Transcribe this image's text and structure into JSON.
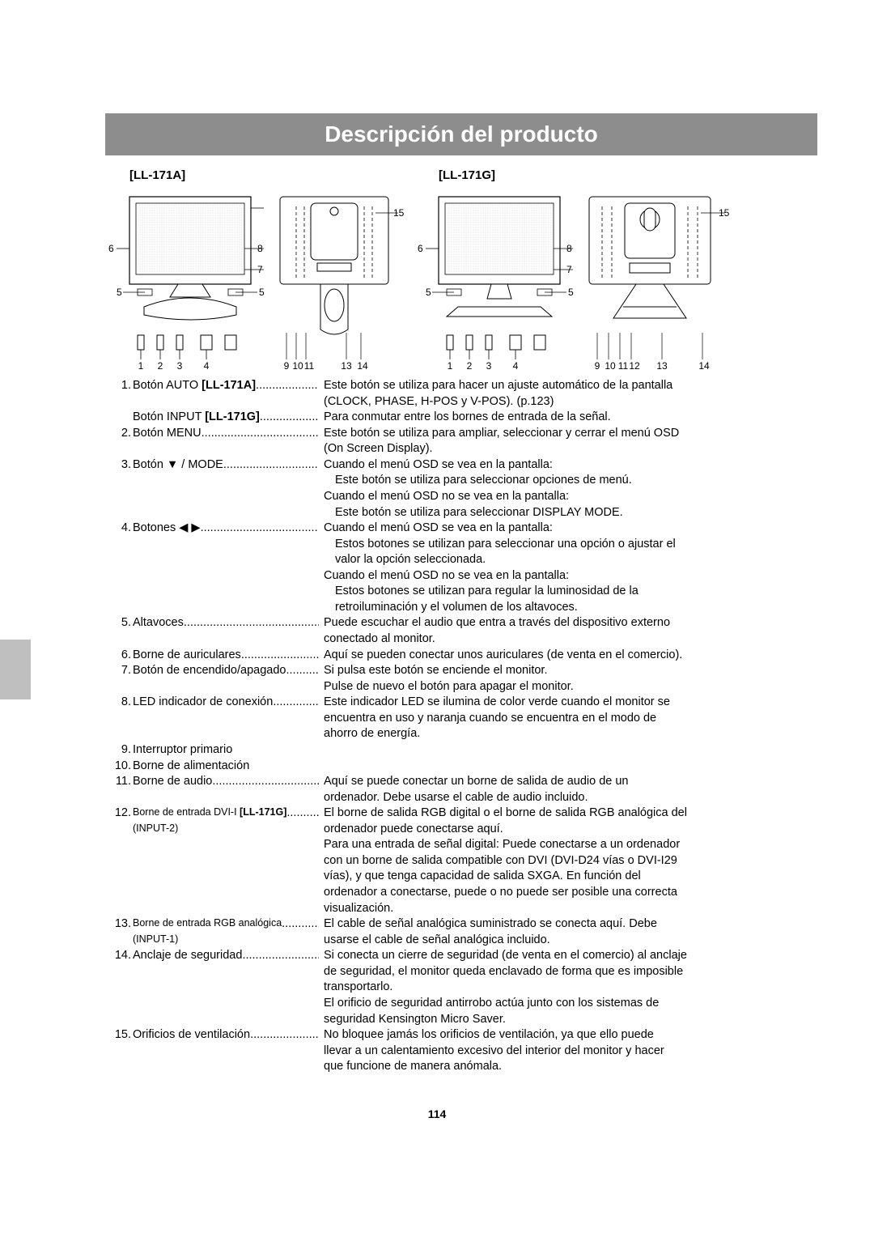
{
  "title": "Descripción del producto",
  "page_number": "114",
  "models": {
    "a": "[LL-171A]",
    "g": "[LL-171G]"
  },
  "diagram": {
    "front_a_labels": {
      "15": "15",
      "8": "8",
      "7": "7",
      "6": "6",
      "5l": "5",
      "5r": "5",
      "b1": "1",
      "b2": "2",
      "b3": "3",
      "b4": "4"
    },
    "back_a_labels": {
      "b9": "9",
      "b10": "10",
      "b11": "11",
      "b13": "13",
      "b14": "14"
    },
    "front_g_labels": {
      "15": "15",
      "8": "8",
      "7": "7",
      "6": "6",
      "5l": "5",
      "5r": "5",
      "b1": "1",
      "b2": "2",
      "b3": "3",
      "b4": "4"
    },
    "back_g_labels": {
      "b9": "9",
      "b10": "10",
      "b11": "11",
      "b12": "12",
      "b13": "13",
      "b14": "14"
    }
  },
  "entries": [
    {
      "num": "1.",
      "label": "Botón AUTO [LL-171A]",
      "desc_lines": [
        "Este botón se utiliza para hacer un ajuste automático de la pantalla",
        "(CLOCK, PHASE, H-POS y V-POS). (p.123)"
      ],
      "extra_label": "Botón INPUT [LL-171G]",
      "extra_desc": "Para conmutar entre los bornes de entrada de la señal."
    },
    {
      "num": "2.",
      "label": "Botón MENU",
      "desc_lines": [
        "Este botón se utiliza para ampliar, seleccionar y cerrar el menú OSD",
        "(On Screen Display)."
      ]
    },
    {
      "num": "3.",
      "label": "Botón ▼ / MODE",
      "desc_lines": [
        "Cuando el menú OSD se vea en la pantalla:",
        "  Este botón se utiliza para seleccionar opciones de menú.",
        "Cuando el menú OSD no se vea en la pantalla:",
        "  Este botón se utiliza para seleccionar DISPLAY MODE."
      ]
    },
    {
      "num": "4.",
      "label": "Botones ◀ ▶",
      "desc_lines": [
        "Cuando el menú OSD se vea en la pantalla:",
        "  Estos botones se utilizan para seleccionar una opción o ajustar el",
        "  valor la opción seleccionada.",
        "Cuando el menú OSD no se vea en la pantalla:",
        "  Estos botones se utilizan para regular la luminosidad de la",
        "  retroiluminación y el volumen de los altavoces."
      ]
    },
    {
      "num": "5.",
      "label": "Altavoces",
      "desc_lines": [
        "Puede escuchar el audio que entra a través del dispositivo externo",
        "conectado al monitor."
      ]
    },
    {
      "num": "6.",
      "label": "Borne de auriculares",
      "desc_lines": [
        "Aquí se pueden conectar unos auriculares (de venta en el comercio)."
      ]
    },
    {
      "num": "7.",
      "label": "Botón de encendido/apagado",
      "desc_lines": [
        "Si pulsa este botón se enciende el monitor.",
        "Pulse de nuevo el botón para apagar el monitor."
      ]
    },
    {
      "num": "8.",
      "label": "LED indicador de conexión",
      "desc_lines": [
        "Este indicador LED se ilumina de color verde cuando el monitor se",
        "encuentra en uso y naranja cuando se encuentra en el modo de",
        "ahorro de energía."
      ]
    },
    {
      "num": "9.",
      "label": "Interruptor primario",
      "no_desc": true
    },
    {
      "num": "10.",
      "label": "Borne de alimentación",
      "no_desc": true
    },
    {
      "num": "11.",
      "label": "Borne de audio",
      "desc_lines": [
        "Aquí se puede conectar un borne de salida de audio de un",
        "ordenador. Debe usarse el cable de audio incluido."
      ]
    },
    {
      "num": "12.",
      "label": "Borne de entrada DVI-I [LL-171G]",
      "sublabel": "(INPUT-2)",
      "small": true,
      "desc_lines": [
        "El borne de salida RGB digital o el borne de salida RGB analógica del",
        "ordenador puede conectarse aquí.",
        "Para una entrada de señal digital: Puede conectarse a un ordenador",
        "con un borne de salida compatible con DVI (DVI-D24 vías o DVI-I29",
        "vías), y que tenga capacidad de salida SXGA. En función del",
        "ordenador a conectarse, puede o no puede ser posible una correcta",
        "visualización."
      ]
    },
    {
      "num": "13.",
      "label": "Borne de entrada RGB analógica",
      "sublabel": "(INPUT-1)",
      "small": true,
      "desc_lines": [
        "El cable de señal analógica suministrado se conecta aquí. Debe",
        "usarse el cable de señal analógica incluido."
      ]
    },
    {
      "num": "14.",
      "label": "Anclaje de seguridad",
      "desc_lines": [
        "Si conecta un cierre de seguridad (de venta en el comercio) al anclaje",
        "de seguridad, el monitor queda enclavado de forma que es imposible",
        "transportarlo.",
        "El orificio de seguridad antirrobo actúa junto con los sistemas de",
        "seguridad Kensington Micro Saver."
      ]
    },
    {
      "num": "15.",
      "label": "Orificios de ventilación",
      "desc_lines": [
        "No bloquee jamás los orificios de ventilación, ya que ello puede",
        "llevar a un calentamiento excesivo del interior del monitor y hacer",
        "que funcione de manera anómala."
      ]
    }
  ]
}
